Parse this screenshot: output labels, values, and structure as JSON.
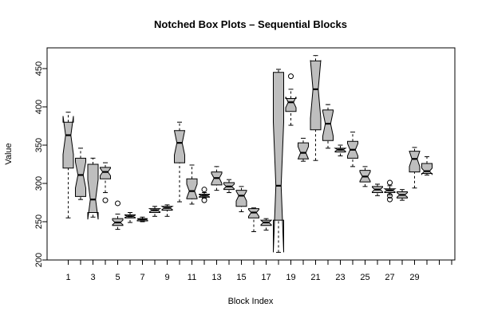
{
  "chart_data": {
    "type": "boxplot",
    "notched": true,
    "title": "Notched Box Plots – Sequential Blocks",
    "xlabel": "Block Index",
    "ylabel": "Value",
    "ylim": [
      200,
      475
    ],
    "yticks": [
      200,
      250,
      300,
      350,
      400,
      450
    ],
    "xlim": [
      0,
      32
    ],
    "xticks": [
      1,
      3,
      5,
      7,
      9,
      11,
      13,
      15,
      17,
      19,
      21,
      23,
      25,
      27,
      29
    ],
    "colors": {
      "box_fill": "#bebebe",
      "stroke": "#000000",
      "median": "#000000"
    },
    "boxes": [
      {
        "x": 1,
        "whislo": 255,
        "q1": 320,
        "med": 363,
        "q3": 380,
        "whishi": 393,
        "notch": [
          338,
          388
        ],
        "fliers": []
      },
      {
        "x": 2,
        "whislo": 279,
        "q1": 283,
        "med": 311,
        "q3": 333,
        "whishi": 346,
        "notch": [
          294,
          328
        ],
        "fliers": []
      },
      {
        "x": 3,
        "whislo": 256,
        "q1": 262,
        "med": 279,
        "q3": 325,
        "whishi": 333,
        "notch": [
          253,
          305
        ],
        "fliers": []
      },
      {
        "x": 4,
        "whislo": 288,
        "q1": 306,
        "med": 315,
        "q3": 321,
        "whishi": 327,
        "notch": [
          310,
          320
        ],
        "fliers": [
          278
        ]
      },
      {
        "x": 5,
        "whislo": 240,
        "q1": 245,
        "med": 249,
        "q3": 254,
        "whishi": 260,
        "notch": [
          246,
          252
        ],
        "fliers": [
          274
        ]
      },
      {
        "x": 6,
        "whislo": 249,
        "q1": 255,
        "med": 257,
        "q3": 259,
        "whishi": 262,
        "notch": [
          255.5,
          258.5
        ],
        "fliers": []
      },
      {
        "x": 7,
        "whislo": 250,
        "q1": 251,
        "med": 253,
        "q3": 254,
        "whishi": 256,
        "notch": [
          252,
          254
        ],
        "fliers": []
      },
      {
        "x": 8,
        "whislo": 257,
        "q1": 262,
        "med": 265,
        "q3": 267,
        "whishi": 270,
        "notch": [
          263,
          267
        ],
        "fliers": []
      },
      {
        "x": 9,
        "whislo": 257,
        "q1": 265,
        "med": 268,
        "q3": 270,
        "whishi": 272,
        "notch": [
          266,
          270
        ],
        "fliers": []
      },
      {
        "x": 10,
        "whislo": 276,
        "q1": 327,
        "med": 353,
        "q3": 369,
        "whishi": 380,
        "notch": [
          337,
          369
        ],
        "fliers": []
      },
      {
        "x": 11,
        "whislo": 273,
        "q1": 280,
        "med": 290,
        "q3": 306,
        "whishi": 324,
        "notch": [
          281,
          299
        ],
        "fliers": []
      },
      {
        "x": 12,
        "whislo": 281,
        "q1": 282,
        "med": 284,
        "q3": 286,
        "whishi": 288,
        "notch": [
          282.5,
          285.5
        ],
        "fliers": [
          292,
          278
        ]
      },
      {
        "x": 13,
        "whislo": 291,
        "q1": 298,
        "med": 307,
        "q3": 315,
        "whishi": 322,
        "notch": [
          300,
          313
        ],
        "fliers": []
      },
      {
        "x": 14,
        "whislo": 288,
        "q1": 292,
        "med": 296,
        "q3": 301,
        "whishi": 305,
        "notch": [
          293,
          299
        ],
        "fliers": []
      },
      {
        "x": 15,
        "whislo": 263,
        "q1": 270,
        "med": 284,
        "q3": 291,
        "whishi": 296,
        "notch": [
          277,
          290
        ],
        "fliers": []
      },
      {
        "x": 16,
        "whislo": 237,
        "q1": 255,
        "med": 262,
        "q3": 267,
        "whishi": 268,
        "notch": [
          257,
          266
        ],
        "fliers": []
      },
      {
        "x": 17,
        "whislo": 239,
        "q1": 245,
        "med": 249,
        "q3": 252,
        "whishi": 254,
        "notch": [
          246,
          252
        ],
        "fliers": []
      },
      {
        "x": 18,
        "whislo": 210,
        "q1": 252,
        "med": 297,
        "q3": 445,
        "whishi": 449,
        "notch": [
          210,
          380
        ],
        "fliers": []
      },
      {
        "x": 19,
        "whislo": 376,
        "q1": 394,
        "med": 406,
        "q3": 411,
        "whishi": 423,
        "notch": [
          399,
          413
        ],
        "fliers": [
          440
        ]
      },
      {
        "x": 20,
        "whislo": 329,
        "q1": 332,
        "med": 340,
        "q3": 353,
        "whishi": 359,
        "notch": [
          332,
          348
        ],
        "fliers": []
      },
      {
        "x": 21,
        "whislo": 330,
        "q1": 370,
        "med": 423,
        "q3": 460,
        "whishi": 467,
        "notch": [
          385,
          461
        ],
        "fliers": []
      },
      {
        "x": 22,
        "whislo": 346,
        "q1": 356,
        "med": 378,
        "q3": 396,
        "whishi": 403,
        "notch": [
          362,
          394
        ],
        "fliers": []
      },
      {
        "x": 23,
        "whislo": 336,
        "q1": 341,
        "med": 344,
        "q3": 346,
        "whishi": 350,
        "notch": [
          342,
          346
        ],
        "fliers": []
      },
      {
        "x": 24,
        "whislo": 322,
        "q1": 333,
        "med": 344,
        "q3": 355,
        "whishi": 367,
        "notch": [
          336,
          352
        ],
        "fliers": []
      },
      {
        "x": 25,
        "whislo": 296,
        "q1": 302,
        "med": 309,
        "q3": 317,
        "whishi": 322,
        "notch": [
          303,
          315
        ],
        "fliers": []
      },
      {
        "x": 26,
        "whislo": 284,
        "q1": 288,
        "med": 292,
        "q3": 296,
        "whishi": 299,
        "notch": [
          289,
          295
        ],
        "fliers": []
      },
      {
        "x": 27,
        "whislo": 285,
        "q1": 288,
        "med": 291,
        "q3": 293,
        "whishi": 297,
        "notch": [
          289,
          293
        ],
        "fliers": [
          301,
          284,
          279
        ]
      },
      {
        "x": 28,
        "whislo": 278,
        "q1": 281,
        "med": 285,
        "q3": 289,
        "whishi": 292,
        "notch": [
          282,
          288
        ],
        "fliers": []
      },
      {
        "x": 29,
        "whislo": 294,
        "q1": 315,
        "med": 332,
        "q3": 342,
        "whishi": 347,
        "notch": [
          322,
          342
        ],
        "fliers": []
      },
      {
        "x": 30,
        "whislo": 311,
        "q1": 313,
        "med": 316,
        "q3": 326,
        "whishi": 335,
        "notch": [
          312,
          320
        ],
        "fliers": []
      }
    ]
  }
}
